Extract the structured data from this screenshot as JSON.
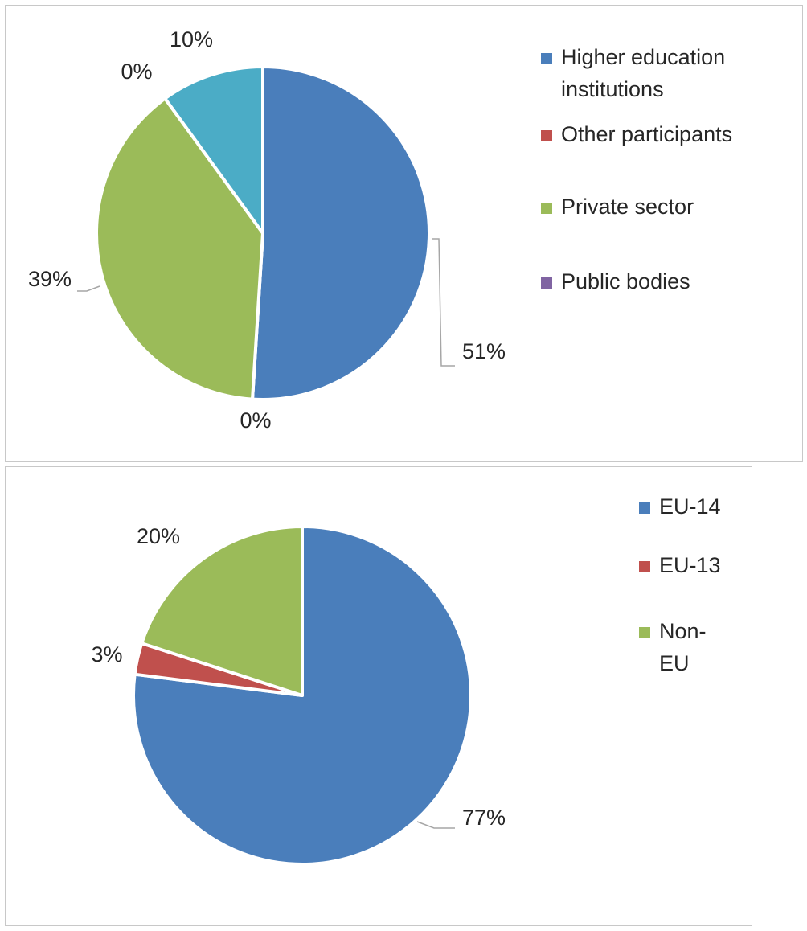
{
  "chart_data": [
    {
      "type": "pie",
      "title": "",
      "categories": [
        "Higher education institutions",
        "Other participants",
        "Private sector",
        "Public bodies",
        ""
      ],
      "values": [
        51,
        0,
        39,
        0,
        10
      ],
      "labels": [
        "51%",
        "0%",
        "39%",
        "0%",
        "10%"
      ],
      "colors": [
        "#4a7ebb",
        "#c0504d",
        "#9bbb59",
        "#8064a2",
        "#4bacc6"
      ],
      "legend": {
        "placement": "right",
        "entries": [
          {
            "lines": [
              "Higher education",
              "institutions"
            ],
            "color": "#4a7ebb"
          },
          {
            "lines": [
              "Other participants"
            ],
            "color": "#c0504d"
          },
          {
            "lines": [
              "Private sector"
            ],
            "color": "#9bbb59"
          },
          {
            "lines": [
              "Public bodies"
            ],
            "color": "#8064a2"
          }
        ]
      }
    },
    {
      "type": "pie",
      "title": "",
      "categories": [
        "EU-14",
        "EU-13",
        "Non-EU"
      ],
      "values": [
        77,
        3,
        20
      ],
      "labels": [
        "77%",
        "3%",
        "20%"
      ],
      "colors": [
        "#4a7ebb",
        "#c0504d",
        "#9bbb59"
      ],
      "legend": {
        "placement": "top-right",
        "entries": [
          {
            "lines": [
              "EU-14"
            ],
            "color": "#4a7ebb"
          },
          {
            "lines": [
              "EU-13"
            ],
            "color": "#c0504d"
          },
          {
            "lines": [
              "Non-",
              "EU"
            ],
            "color": "#9bbb59"
          }
        ]
      }
    }
  ]
}
